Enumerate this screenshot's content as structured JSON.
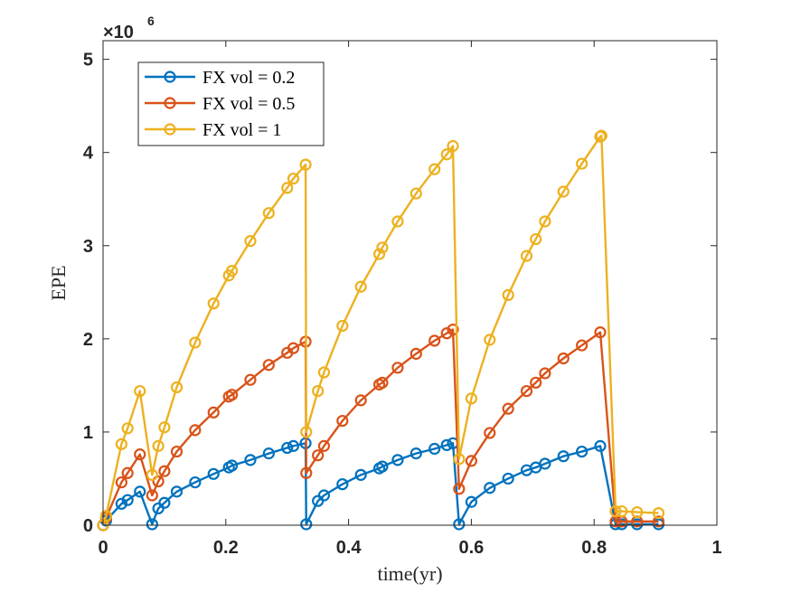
{
  "chart_data": {
    "type": "line",
    "title": "",
    "xlabel": "time(yr)",
    "ylabel": "EPE",
    "xlim": [
      0,
      1
    ],
    "ylim": [
      0,
      5200000
    ],
    "xticks": [
      0,
      0.2,
      0.4,
      0.6,
      0.8,
      1
    ],
    "xtick_labels": [
      "0",
      "0.2",
      "0.4",
      "0.6",
      "0.8",
      "1"
    ],
    "yticks": [
      0,
      1000000,
      2000000,
      3000000,
      4000000,
      5000000
    ],
    "ytick_labels": [
      "0",
      "1",
      "2",
      "3",
      "4",
      "5"
    ],
    "y_exponent": {
      "base": "×10",
      "power": "6"
    },
    "grid": false,
    "legend_position": "top-left",
    "series": [
      {
        "name": "FX vol = 0.2",
        "color": "#0072BD",
        "marker": "circle",
        "points": [
          [
            0,
            0
          ],
          [
            0.005,
            50000
          ],
          [
            0.03,
            230000
          ],
          [
            0.04,
            270000
          ],
          [
            0.06,
            360000
          ],
          [
            0.08,
            10000
          ],
          [
            0.09,
            180000
          ],
          [
            0.1,
            240000
          ],
          [
            0.12,
            360000
          ],
          [
            0.15,
            460000
          ],
          [
            0.18,
            550000
          ],
          [
            0.205,
            620000
          ],
          [
            0.21,
            640000
          ],
          [
            0.24,
            700000
          ],
          [
            0.27,
            770000
          ],
          [
            0.3,
            830000
          ],
          [
            0.31,
            850000
          ],
          [
            0.33,
            880000
          ],
          [
            0.331,
            10000
          ],
          [
            0.35,
            260000
          ],
          [
            0.36,
            320000
          ],
          [
            0.39,
            440000
          ],
          [
            0.42,
            540000
          ],
          [
            0.45,
            610000
          ],
          [
            0.455,
            630000
          ],
          [
            0.48,
            700000
          ],
          [
            0.51,
            770000
          ],
          [
            0.54,
            820000
          ],
          [
            0.56,
            860000
          ],
          [
            0.57,
            880000
          ],
          [
            0.58,
            10000
          ],
          [
            0.6,
            250000
          ],
          [
            0.63,
            400000
          ],
          [
            0.66,
            500000
          ],
          [
            0.69,
            590000
          ],
          [
            0.705,
            620000
          ],
          [
            0.72,
            660000
          ],
          [
            0.75,
            740000
          ],
          [
            0.78,
            790000
          ],
          [
            0.81,
            850000
          ],
          [
            0.835,
            10000
          ],
          [
            0.845,
            10000
          ],
          [
            0.87,
            10000
          ],
          [
            0.905,
            10000
          ]
        ]
      },
      {
        "name": "FX vol = 0.5",
        "color": "#D95319",
        "marker": "circle",
        "points": [
          [
            0,
            0
          ],
          [
            0.005,
            80000
          ],
          [
            0.03,
            460000
          ],
          [
            0.04,
            560000
          ],
          [
            0.06,
            760000
          ],
          [
            0.08,
            320000
          ],
          [
            0.09,
            470000
          ],
          [
            0.1,
            580000
          ],
          [
            0.12,
            790000
          ],
          [
            0.15,
            1020000
          ],
          [
            0.18,
            1210000
          ],
          [
            0.205,
            1380000
          ],
          [
            0.21,
            1400000
          ],
          [
            0.24,
            1560000
          ],
          [
            0.27,
            1720000
          ],
          [
            0.3,
            1850000
          ],
          [
            0.31,
            1900000
          ],
          [
            0.33,
            1970000
          ],
          [
            0.331,
            560000
          ],
          [
            0.35,
            750000
          ],
          [
            0.36,
            850000
          ],
          [
            0.39,
            1120000
          ],
          [
            0.42,
            1340000
          ],
          [
            0.45,
            1510000
          ],
          [
            0.455,
            1530000
          ],
          [
            0.48,
            1690000
          ],
          [
            0.51,
            1840000
          ],
          [
            0.54,
            1980000
          ],
          [
            0.56,
            2060000
          ],
          [
            0.57,
            2100000
          ],
          [
            0.58,
            390000
          ],
          [
            0.6,
            690000
          ],
          [
            0.63,
            990000
          ],
          [
            0.66,
            1250000
          ],
          [
            0.69,
            1440000
          ],
          [
            0.705,
            1530000
          ],
          [
            0.72,
            1630000
          ],
          [
            0.75,
            1790000
          ],
          [
            0.78,
            1930000
          ],
          [
            0.81,
            2070000
          ],
          [
            0.835,
            40000
          ],
          [
            0.845,
            40000
          ],
          [
            0.87,
            40000
          ],
          [
            0.905,
            40000
          ]
        ]
      },
      {
        "name": "FX vol = 1",
        "color": "#EDB120",
        "marker": "circle",
        "points": [
          [
            0,
            0
          ],
          [
            0.005,
            100000
          ],
          [
            0.03,
            870000
          ],
          [
            0.04,
            1040000
          ],
          [
            0.06,
            1440000
          ],
          [
            0.08,
            540000
          ],
          [
            0.09,
            850000
          ],
          [
            0.1,
            1050000
          ],
          [
            0.12,
            1480000
          ],
          [
            0.15,
            1960000
          ],
          [
            0.18,
            2380000
          ],
          [
            0.205,
            2680000
          ],
          [
            0.21,
            2730000
          ],
          [
            0.24,
            3050000
          ],
          [
            0.27,
            3350000
          ],
          [
            0.3,
            3620000
          ],
          [
            0.31,
            3720000
          ],
          [
            0.33,
            3870000
          ],
          [
            0.331,
            1000000
          ],
          [
            0.35,
            1440000
          ],
          [
            0.36,
            1640000
          ],
          [
            0.39,
            2140000
          ],
          [
            0.42,
            2560000
          ],
          [
            0.45,
            2910000
          ],
          [
            0.455,
            2980000
          ],
          [
            0.48,
            3260000
          ],
          [
            0.51,
            3560000
          ],
          [
            0.54,
            3820000
          ],
          [
            0.56,
            3980000
          ],
          [
            0.57,
            4070000
          ],
          [
            0.58,
            710000
          ],
          [
            0.6,
            1360000
          ],
          [
            0.63,
            1990000
          ],
          [
            0.66,
            2470000
          ],
          [
            0.69,
            2890000
          ],
          [
            0.705,
            3070000
          ],
          [
            0.72,
            3260000
          ],
          [
            0.75,
            3580000
          ],
          [
            0.78,
            3880000
          ],
          [
            0.81,
            4170000
          ],
          [
            0.812,
            4180000
          ],
          [
            0.835,
            150000
          ],
          [
            0.845,
            150000
          ],
          [
            0.87,
            140000
          ],
          [
            0.905,
            130000
          ]
        ]
      }
    ]
  }
}
